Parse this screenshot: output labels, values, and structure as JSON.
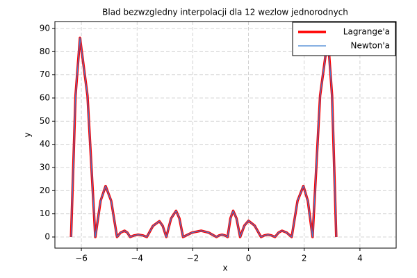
{
  "chart_data": {
    "type": "line",
    "title": "Blad bezwzgledny interpolacji dla 12 wezlow jednorodnych",
    "xlabel": "x",
    "ylabel": "y",
    "x": [
      -6.37,
      -6.21,
      -6.05,
      -5.78,
      -5.5,
      -5.31,
      -5.13,
      -4.93,
      -4.72,
      -4.59,
      -4.45,
      -4.35,
      -4.25,
      -4.1,
      -3.95,
      -3.8,
      -3.65,
      -3.43,
      -3.2,
      -3.08,
      -2.95,
      -2.78,
      -2.6,
      -2.48,
      -2.35,
      -2.03,
      -1.7,
      -1.43,
      -1.15,
      -1.05,
      -0.95,
      -0.85,
      -0.75,
      -0.65,
      -0.55,
      -0.43,
      -0.3,
      -0.15,
      0.0,
      0.22,
      0.45,
      0.57,
      0.7,
      0.82,
      0.95,
      1.08,
      1.2,
      1.37,
      1.55,
      1.76,
      1.97,
      2.13,
      2.3,
      2.57,
      2.85,
      3.0,
      3.15
    ],
    "series": [
      {
        "name": "Lagrange'a",
        "color": "#ff0000",
        "width": 3.5,
        "values": [
          0,
          61,
          86,
          61,
          0,
          15.6,
          22,
          15.6,
          0,
          1.9,
          2.7,
          1.9,
          0,
          0.7,
          1,
          0.7,
          0,
          4.8,
          6.8,
          4.8,
          0,
          8,
          11.3,
          8,
          0,
          1.9,
          2.7,
          1.9,
          0,
          0.7,
          1,
          0.7,
          0,
          8,
          11.3,
          8,
          0,
          4.9,
          7,
          4.9,
          0,
          0.7,
          1,
          0.7,
          0,
          1.9,
          2.7,
          1.9,
          0,
          15.6,
          22,
          15.6,
          0,
          61,
          86,
          61,
          0
        ]
      },
      {
        "name": "Newton'a",
        "color": "#3f7fd0",
        "width": 1.2,
        "values": [
          0,
          61,
          86,
          61,
          0,
          15.6,
          22,
          15.6,
          0,
          1.9,
          2.7,
          1.9,
          0,
          0.7,
          1,
          0.7,
          0,
          4.8,
          6.8,
          4.8,
          0,
          8,
          11.3,
          8,
          0,
          1.9,
          2.7,
          1.9,
          0,
          0.7,
          1,
          0.7,
          0,
          8,
          11.3,
          8,
          0,
          4.9,
          7,
          4.9,
          0,
          0.7,
          1,
          0.7,
          0,
          1.9,
          2.7,
          1.9,
          0,
          15.6,
          22,
          15.6,
          0,
          61,
          86,
          61,
          0
        ]
      }
    ],
    "xlim": [
      -6.95,
      5.3
    ],
    "xticks": [
      {
        "value": -6,
        "label": "−6"
      },
      {
        "value": -4,
        "label": "−4"
      },
      {
        "value": -2,
        "label": "−2"
      },
      0,
      2,
      4
    ],
    "ylim": [
      -4.8,
      93
    ],
    "yticks": [
      0,
      10,
      20,
      30,
      40,
      50,
      60,
      70,
      80,
      90
    ],
    "grid": true,
    "legend": "upper-right"
  }
}
